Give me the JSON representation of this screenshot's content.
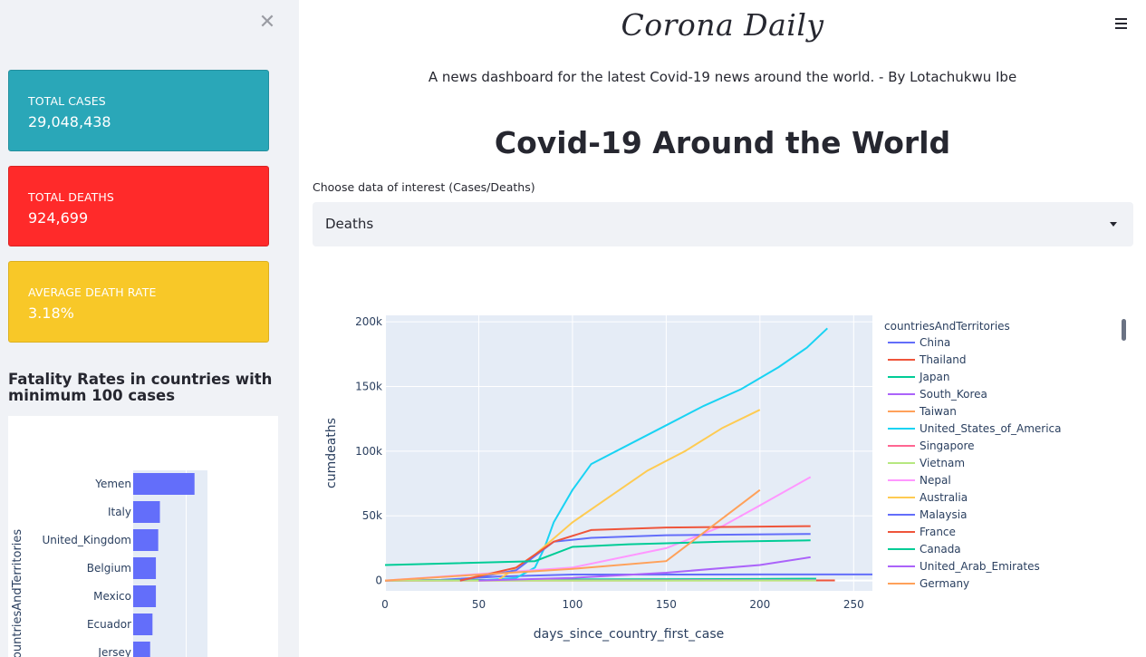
{
  "sidebar": {
    "close_icon": "close-icon",
    "cards": {
      "total_cases": {
        "label": "TOTAL CASES",
        "value": "29,048,438",
        "color": "#2aa7b8"
      },
      "total_deaths": {
        "label": "TOTAL DEATHS",
        "value": "924,699",
        "color": "#ff2a2a"
      },
      "average_death_rate": {
        "label": "AVERAGE DEATH RATE",
        "value": "3.18%",
        "color": "#f8c828"
      }
    },
    "fatality_title": "Fatality Rates in countries with minimum 100 cases"
  },
  "header": {
    "title": "Corona Daily",
    "subtitle": "A news dashboard for the latest Covid-19 news around the world. - By Lotachukwu Ibe",
    "menu_icon": "hamburger-menu-icon"
  },
  "main": {
    "section_title": "Covid-19 Around the World",
    "select": {
      "label": "Choose data of interest (Cases/Deaths)",
      "value": "Deaths"
    }
  },
  "chart_data": [
    {
      "type": "bar",
      "orientation": "horizontal",
      "ylabel": "countriesAndTerritories",
      "categories": [
        "Yemen",
        "Italy",
        "United_Kingdom",
        "Belgium",
        "Mexico",
        "Ecuador",
        "Jersey"
      ],
      "values": [
        28.9,
        12.6,
        11.8,
        10.7,
        10.7,
        9.1,
        8.0
      ],
      "color": "#636efa"
    },
    {
      "type": "line",
      "xlabel": "days_since_country_first_case",
      "ylabel": "cumdeaths",
      "xlim": [
        0,
        260
      ],
      "ylim": [
        -8000,
        205000
      ],
      "x_ticks": [
        0,
        50,
        100,
        150,
        200,
        250
      ],
      "y_ticks": [
        0,
        50000,
        100000,
        150000,
        200000
      ],
      "x_tick_labels": [
        "0",
        "50",
        "100",
        "150",
        "200",
        "250"
      ],
      "y_tick_labels": [
        "0",
        "50k",
        "100k",
        "150k",
        "200k"
      ],
      "legend_title": "countriesAndTerritories",
      "legend_position": "right",
      "series": [
        {
          "name": "China",
          "color": "#636efa",
          "x": [
            0,
            30,
            60,
            100,
            150,
            200,
            260
          ],
          "y": [
            0,
            500,
            3000,
            4600,
            4600,
            4700,
            4700
          ]
        },
        {
          "name": "Thailand",
          "color": "#EF553B",
          "x": [
            0,
            100,
            200,
            240
          ],
          "y": [
            0,
            50,
            60,
            60
          ]
        },
        {
          "name": "Japan",
          "color": "#00cc96",
          "x": [
            0,
            100,
            200,
            230
          ],
          "y": [
            0,
            800,
            1200,
            1400
          ]
        },
        {
          "name": "South_Korea",
          "color": "#ab63fa",
          "x": [
            0,
            60,
            150,
            230
          ],
          "y": [
            0,
            150,
            300,
            350
          ]
        },
        {
          "name": "Taiwan",
          "color": "#FFA15A",
          "x": [
            0,
            100,
            230
          ],
          "y": [
            0,
            7,
            7
          ]
        },
        {
          "name": "United_States_of_America",
          "color": "#19d3f3",
          "x": [
            50,
            70,
            80,
            85,
            90,
            100,
            110,
            130,
            150,
            170,
            190,
            210,
            225,
            236
          ],
          "y": [
            0,
            2000,
            10000,
            25000,
            45000,
            70000,
            90000,
            105000,
            120000,
            135000,
            148000,
            165000,
            180000,
            195000
          ]
        },
        {
          "name": "Singapore",
          "color": "#FF6692",
          "x": [
            0,
            100,
            230
          ],
          "y": [
            0,
            20,
            27
          ]
        },
        {
          "name": "Vietnam",
          "color": "#B6E880",
          "x": [
            0,
            150,
            200,
            230
          ],
          "y": [
            0,
            0,
            30,
            35
          ]
        },
        {
          "name": "Nepal",
          "color": "#FF97FF",
          "x": [
            0,
            100,
            150,
            180,
            200,
            227
          ],
          "y": [
            0,
            10000,
            25000,
            42000,
            58000,
            80000
          ]
        },
        {
          "name": "Australia",
          "color": "#FECB52",
          "x": [
            60,
            80,
            100,
            120,
            140,
            160,
            180,
            200
          ],
          "y": [
            0,
            20000,
            45000,
            65000,
            85000,
            100000,
            118000,
            132000
          ]
        },
        {
          "name": "Malaysia",
          "color": "#636efa",
          "x": [
            40,
            70,
            90,
            110,
            150,
            227
          ],
          "y": [
            0,
            8000,
            30000,
            33000,
            35000,
            36000
          ]
        },
        {
          "name": "France",
          "color": "#EF553B",
          "x": [
            40,
            70,
            90,
            110,
            150,
            227
          ],
          "y": [
            0,
            10000,
            30000,
            39000,
            41000,
            42000
          ]
        },
        {
          "name": "Canada",
          "color": "#00cc96",
          "x": [
            0,
            80,
            100,
            130,
            180,
            227
          ],
          "y": [
            12000,
            15000,
            26000,
            28000,
            30000,
            31000
          ]
        },
        {
          "name": "United_Arab_Emirates",
          "color": "#ab63fa",
          "x": [
            50,
            100,
            150,
            200,
            227
          ],
          "y": [
            0,
            2000,
            6000,
            12000,
            18000
          ]
        },
        {
          "name": "Germany",
          "color": "#FFA15A",
          "x": [
            0,
            100,
            150,
            200
          ],
          "y": [
            0,
            9000,
            15000,
            70000
          ]
        }
      ]
    }
  ]
}
